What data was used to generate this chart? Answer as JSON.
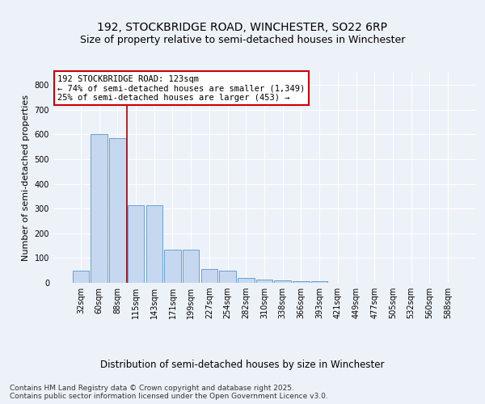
{
  "title": "192, STOCKBRIDGE ROAD, WINCHESTER, SO22 6RP",
  "subtitle": "Size of property relative to semi-detached houses in Winchester",
  "xlabel": "Distribution of semi-detached houses by size in Winchester",
  "ylabel": "Number of semi-detached properties",
  "categories": [
    "32sqm",
    "60sqm",
    "88sqm",
    "115sqm",
    "143sqm",
    "171sqm",
    "199sqm",
    "227sqm",
    "254sqm",
    "282sqm",
    "310sqm",
    "338sqm",
    "366sqm",
    "393sqm",
    "421sqm",
    "449sqm",
    "477sqm",
    "505sqm",
    "532sqm",
    "560sqm",
    "588sqm"
  ],
  "values": [
    50,
    600,
    585,
    315,
    315,
    135,
    135,
    55,
    50,
    20,
    14,
    10,
    5,
    5,
    0,
    0,
    0,
    0,
    0,
    0,
    0
  ],
  "bar_color": "#c5d8f0",
  "bar_edge_color": "#6a9fcf",
  "vline_x": 2.5,
  "vline_color": "#aa0000",
  "annotation_text": "192 STOCKBRIDGE ROAD: 123sqm\n← 74% of semi-detached houses are smaller (1,349)\n25% of semi-detached houses are larger (453) →",
  "annotation_box_color": "#ffffff",
  "annotation_box_edge_color": "#cc0000",
  "ylim": [
    0,
    850
  ],
  "yticks": [
    0,
    100,
    200,
    300,
    400,
    500,
    600,
    700,
    800
  ],
  "background_color": "#edf2f9",
  "plot_background_color": "#edf2f9",
  "footer_text": "Contains HM Land Registry data © Crown copyright and database right 2025.\nContains public sector information licensed under the Open Government Licence v3.0.",
  "title_fontsize": 10,
  "subtitle_fontsize": 9,
  "ylabel_fontsize": 8,
  "xlabel_fontsize": 8.5,
  "tick_fontsize": 7,
  "annotation_fontsize": 7.5,
  "footer_fontsize": 6.5
}
